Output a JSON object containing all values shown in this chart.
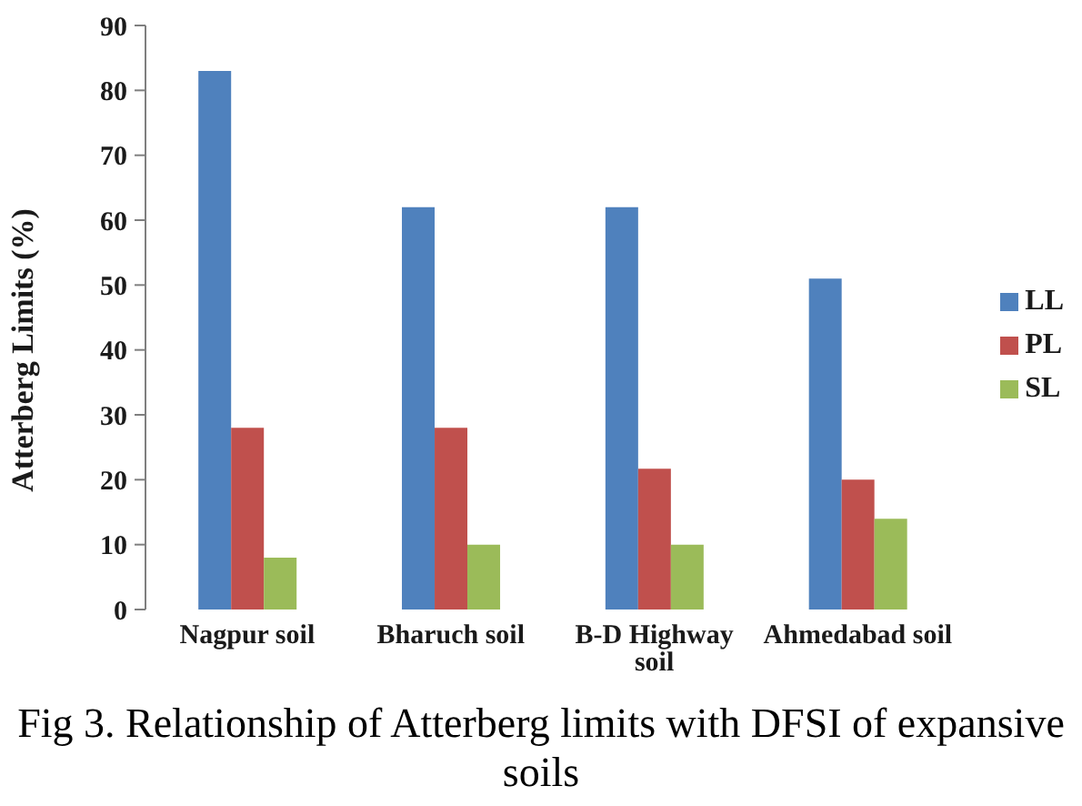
{
  "chart_data": {
    "type": "bar",
    "categories": [
      "Nagpur soil",
      "Bharuch soil",
      "B-D Highway soil",
      "Ahmedabad soil"
    ],
    "series": [
      {
        "name": "LL",
        "color": "#4f81bd",
        "values": [
          83,
          62,
          62,
          51
        ]
      },
      {
        "name": "PL",
        "color": "#c0504d",
        "values": [
          28,
          28,
          21.7,
          20
        ]
      },
      {
        "name": "SL",
        "color": "#9bbb59",
        "values": [
          8,
          10,
          10,
          14
        ]
      }
    ],
    "ylabel": "Atterberg Limits (%)",
    "ylim": [
      0,
      90
    ],
    "yticks": [
      0,
      10,
      20,
      30,
      40,
      50,
      60,
      70,
      80,
      90
    ],
    "legend": "right",
    "annotations": [
      "Fig 3. Relationship of Atterberg limits with DFSI of expansive soils"
    ]
  }
}
